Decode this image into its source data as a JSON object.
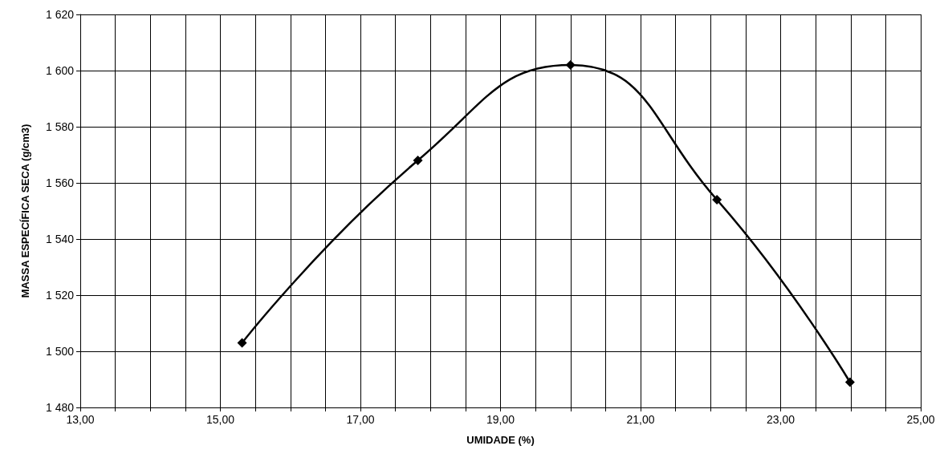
{
  "chart_data": {
    "type": "line",
    "xlabel": "UMIDADE (%)",
    "ylabel": "MASSA ESPECÍFICA SECA (g/cm3)",
    "x": [
      15.31,
      17.82,
      20.0,
      22.09,
      23.99
    ],
    "series": [
      {
        "color": "#000000",
        "values": [
          1503,
          1568,
          1602,
          1554,
          1489
        ]
      }
    ],
    "xlim": [
      13,
      25
    ],
    "xticks": [
      {
        "value": 13,
        "label": "13,00"
      },
      {
        "value": 13.5,
        "label": null
      },
      {
        "value": 14,
        "label": null
      },
      {
        "value": 14.5,
        "label": null
      },
      {
        "value": 15,
        "label": "15,00"
      },
      {
        "value": 15.5,
        "label": null
      },
      {
        "value": 16,
        "label": null
      },
      {
        "value": 16.5,
        "label": null
      },
      {
        "value": 17,
        "label": "17,00"
      },
      {
        "value": 17.5,
        "label": null
      },
      {
        "value": 18,
        "label": null
      },
      {
        "value": 18.5,
        "label": null
      },
      {
        "value": 19,
        "label": "19,00"
      },
      {
        "value": 19.5,
        "label": null
      },
      {
        "value": 20,
        "label": null
      },
      {
        "value": 20.5,
        "label": null
      },
      {
        "value": 21,
        "label": "21,00"
      },
      {
        "value": 21.5,
        "label": null
      },
      {
        "value": 22,
        "label": null
      },
      {
        "value": 22.5,
        "label": null
      },
      {
        "value": 23,
        "label": "23,00"
      },
      {
        "value": 23.5,
        "label": null
      },
      {
        "value": 24,
        "label": null
      },
      {
        "value": 24.5,
        "label": null
      },
      {
        "value": 25,
        "label": "25,00"
      }
    ],
    "ylim": [
      1480,
      1620
    ],
    "yticks": [
      {
        "value": 1480,
        "label": "1 480"
      },
      {
        "value": 1500,
        "label": "1 500"
      },
      {
        "value": 1520,
        "label": "1 520"
      },
      {
        "value": 1540,
        "label": "1 540"
      },
      {
        "value": 1560,
        "label": "1 560"
      },
      {
        "value": 1580,
        "label": "1 580"
      },
      {
        "value": 1600,
        "label": "1 600"
      },
      {
        "value": 1620,
        "label": "1 620"
      }
    ],
    "grid": true,
    "marker": "diamond",
    "line_style": "solid"
  }
}
